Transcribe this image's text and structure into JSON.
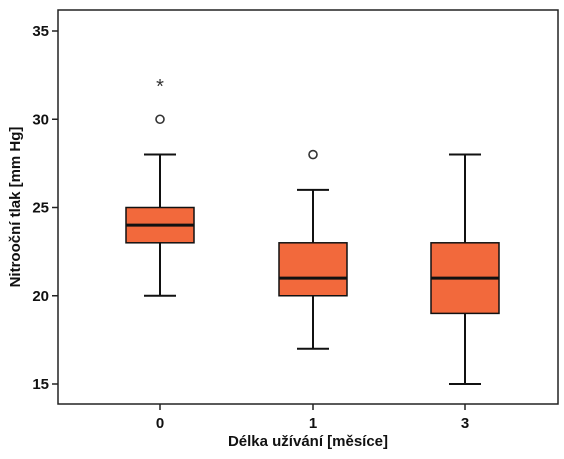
{
  "chart_data": {
    "type": "box",
    "xlabel": "Délka užívání [měsíce]",
    "ylabel": "Nitrooční tlak [mm Hg]",
    "categories": [
      "0",
      "1",
      "3"
    ],
    "ylim": [
      14,
      36.5
    ],
    "yticks": [
      15,
      20,
      25,
      30,
      35
    ],
    "box_color": "#f2693c",
    "boxes": [
      {
        "category": "0",
        "whisker_low": 20,
        "q1": 23,
        "median": 24,
        "q3": 25,
        "whisker_high": 28,
        "outliers": [
          30
        ],
        "extremes": [
          32
        ]
      },
      {
        "category": "1",
        "whisker_low": 17,
        "q1": 20,
        "median": 21,
        "q3": 23,
        "whisker_high": 26,
        "outliers": [
          28
        ],
        "extremes": []
      },
      {
        "category": "3",
        "whisker_low": 15,
        "q1": 19,
        "median": 21,
        "q3": 23,
        "whisker_high": 28,
        "outliers": [],
        "extremes": []
      }
    ],
    "grid": false,
    "legend": "none"
  }
}
